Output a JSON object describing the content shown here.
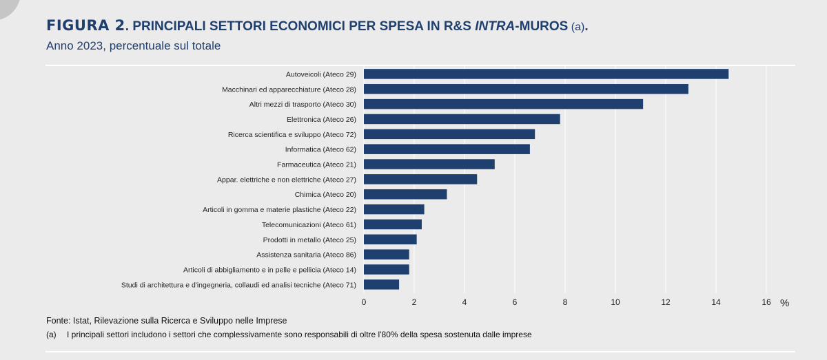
{
  "header": {
    "figure_label": "FIGURA 2",
    "title_main": ". PRINCIPALI SETTORI ECONOMICI PER SPESA IN R&S ",
    "title_italic": "INTRA",
    "title_end": "-MUROS",
    "title_note": " (a)",
    "title_dot": ".",
    "subtitle": "Anno 2023, percentuale sul totale"
  },
  "chart_data": {
    "type": "bar",
    "orientation": "horizontal",
    "categories": [
      "Autoveicoli (Ateco 29)",
      "Macchinari ed apparecchiature (Ateco 28)",
      "Altri mezzi di trasporto (Ateco 30)",
      "Elettronica (Ateco 26)",
      "Ricerca scientifica e sviluppo (Ateco 72)",
      "Informatica (Ateco 62)",
      "Farmaceutica (Ateco 21)",
      "Appar. elettriche e non elettriche (Ateco 27)",
      "Chimica (Ateco 20)",
      "Articoli in gomma e materie plastiche (Ateco 22)",
      "Telecomunicazioni (Ateco 61)",
      "Prodotti in metallo (Ateco 25)",
      "Assistenza sanitaria (Ateco 86)",
      "Articoli di abbigliamento e in pelle e pellicia (Ateco 14)",
      "Studi di architettura e d'ingegneria, collaudi ed analisi tecniche (Ateco 71)"
    ],
    "values": [
      14.5,
      12.9,
      11.1,
      7.8,
      6.8,
      6.6,
      5.2,
      4.5,
      3.3,
      2.4,
      2.3,
      2.1,
      1.8,
      1.8,
      1.4
    ],
    "xlim": [
      0,
      16
    ],
    "xticks": [
      0,
      2,
      4,
      6,
      8,
      10,
      12,
      14,
      16
    ],
    "xlabel": "%",
    "grid": "vertical",
    "bar_color": "#1f3f6e"
  },
  "footer": {
    "source": "Fonte: Istat, Rilevazione sulla Ricerca e Sviluppo nelle Imprese",
    "note_marker": "(a)",
    "note_text": "I principali settori includono i settori che complessivamente sono responsabili di oltre l'80% della spesa sostenuta dalle imprese"
  }
}
